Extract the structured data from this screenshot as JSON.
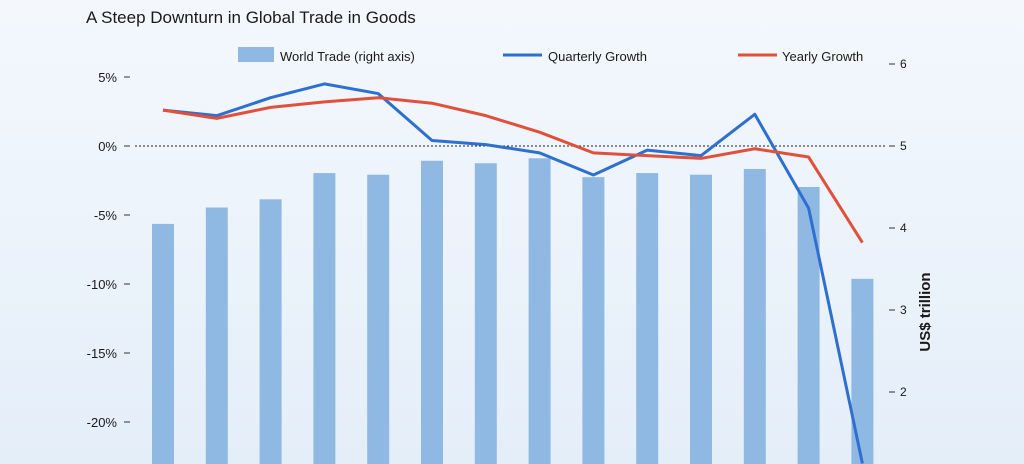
{
  "chart_data": {
    "type": "bar",
    "title": "A Steep Downturn in Global Trade in Goods",
    "categories": [
      "",
      "",
      "",
      "",
      "",
      "",
      "",
      "",
      "",
      "",
      "",
      "",
      "",
      ""
    ],
    "series": [
      {
        "name": "World Trade (right axis)",
        "kind": "bar",
        "axis": "right",
        "color": "#8fb9e3",
        "values": [
          4.05,
          4.25,
          4.35,
          4.67,
          4.65,
          4.82,
          4.79,
          4.85,
          4.62,
          4.67,
          4.65,
          4.72,
          4.5,
          3.38
        ]
      },
      {
        "name": "Quarterly Growth",
        "kind": "line",
        "axis": "left",
        "color": "#2e6fcf",
        "values": [
          2.6,
          2.2,
          3.5,
          4.5,
          3.8,
          0.4,
          0.1,
          -0.5,
          -2.1,
          -0.3,
          -0.7,
          2.3,
          -4.5,
          -23.0
        ]
      },
      {
        "name": "Yearly Growth",
        "kind": "line",
        "axis": "left",
        "color": "#e0503a",
        "values": [
          2.6,
          2.0,
          2.8,
          3.2,
          3.5,
          3.1,
          2.2,
          1.0,
          -0.5,
          -0.7,
          -0.9,
          -0.2,
          -0.8,
          -7.0
        ]
      }
    ],
    "left_axis": {
      "ylim": [
        -23,
        7
      ],
      "ticks": [
        5,
        0,
        -5,
        -10,
        -15,
        -20
      ],
      "tick_labels": [
        "5%",
        "0%",
        "-5%",
        "-10%",
        "-15%",
        "-20%"
      ]
    },
    "right_axis": {
      "label": "US$ trillion",
      "ylim": [
        0.8,
        6.5
      ],
      "ticks": [
        6,
        5,
        4,
        3,
        2
      ],
      "tick_labels": [
        "6",
        "5",
        "4",
        "3",
        "2"
      ]
    },
    "zero_line": "dotted",
    "legend": {
      "position": "top",
      "items": [
        "World Trade (right axis)",
        "Quarterly Growth",
        "Yearly Growth"
      ]
    }
  }
}
